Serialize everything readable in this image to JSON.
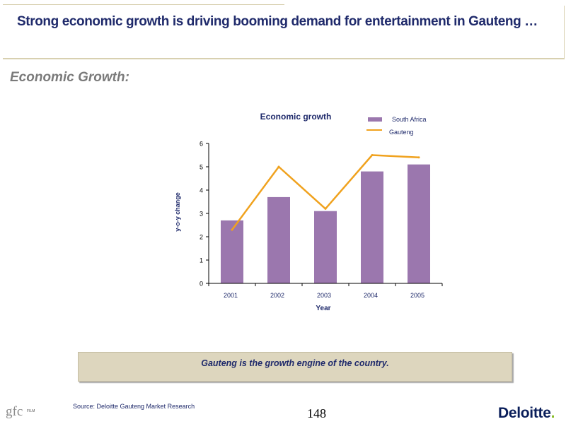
{
  "header": {
    "title": "Strong economic growth is driving booming demand for entertainment in Gauteng …"
  },
  "section": {
    "heading": "Economic Growth:"
  },
  "chart_data": {
    "type": "bar",
    "title": "Economic growth",
    "xlabel": "Year",
    "ylabel": "y-o-y change",
    "categories": [
      "2001",
      "2002",
      "2003",
      "2004",
      "2005"
    ],
    "ylim": [
      0,
      6
    ],
    "yticks": [
      "0",
      "1",
      "2",
      "3",
      "4",
      "5",
      "6"
    ],
    "grid": false,
    "legend_position": "top-right",
    "series": [
      {
        "name": "South Africa",
        "type": "bar",
        "color": "#9b77ae",
        "values": [
          2.7,
          3.7,
          3.1,
          4.8,
          5.1
        ]
      },
      {
        "name": "Gauteng",
        "type": "line",
        "color": "#f0a21e",
        "values": [
          2.3,
          5.0,
          3.2,
          5.5,
          5.4
        ]
      }
    ]
  },
  "callout": {
    "text": "Gauteng is the growth engine of the country."
  },
  "footer": {
    "source": "Source: Deloitte Gauteng Market Research",
    "page_number": "148",
    "gfc_logo": "gfc",
    "gfc_logo_sub": "FILM",
    "deloitte_logo": "Deloitte",
    "deloitte_dot": "."
  }
}
